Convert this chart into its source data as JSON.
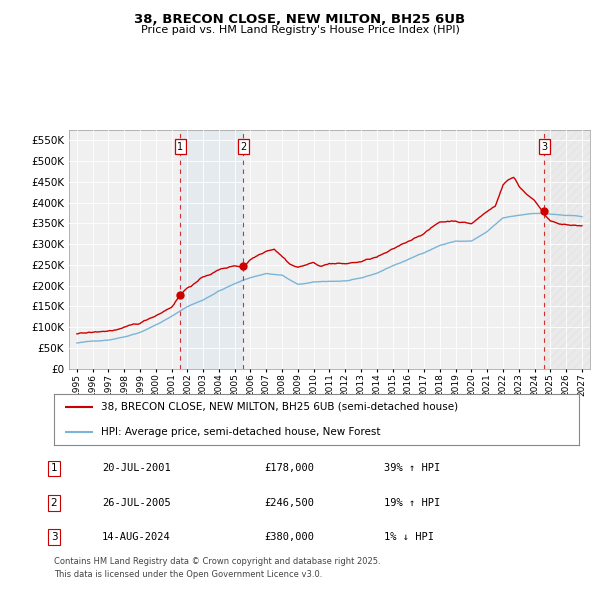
{
  "title1": "38, BRECON CLOSE, NEW MILTON, BH25 6UB",
  "title2": "Price paid vs. HM Land Registry's House Price Index (HPI)",
  "ylim": [
    0,
    575000
  ],
  "yticks": [
    0,
    50000,
    100000,
    150000,
    200000,
    250000,
    300000,
    350000,
    400000,
    450000,
    500000,
    550000
  ],
  "ytick_labels": [
    "£0",
    "£50K",
    "£100K",
    "£150K",
    "£200K",
    "£250K",
    "£300K",
    "£350K",
    "£400K",
    "£450K",
    "£500K",
    "£550K"
  ],
  "hpi_color": "#7ab5d8",
  "price_color": "#cc0000",
  "sale1_date": 2001.55,
  "sale1_price": 178000,
  "sale2_date": 2005.55,
  "sale2_price": 246500,
  "sale3_date": 2024.62,
  "sale3_price": 380000,
  "legend_label1": "38, BRECON CLOSE, NEW MILTON, BH25 6UB (semi-detached house)",
  "legend_label2": "HPI: Average price, semi-detached house, New Forest",
  "footer1": "Contains HM Land Registry data © Crown copyright and database right 2025.",
  "footer2": "This data is licensed under the Open Government Licence v3.0.",
  "table_rows": [
    {
      "num": "1",
      "date": "20-JUL-2001",
      "price": "£178,000",
      "hpi": "39% ↑ HPI"
    },
    {
      "num": "2",
      "date": "26-JUL-2005",
      "price": "£246,500",
      "hpi": "19% ↑ HPI"
    },
    {
      "num": "3",
      "date": "14-AUG-2024",
      "price": "£380,000",
      "hpi": "1% ↓ HPI"
    }
  ],
  "background_color": "#ffffff",
  "grid_color": "#cccccc",
  "plot_bg_color": "#f0f0f0"
}
